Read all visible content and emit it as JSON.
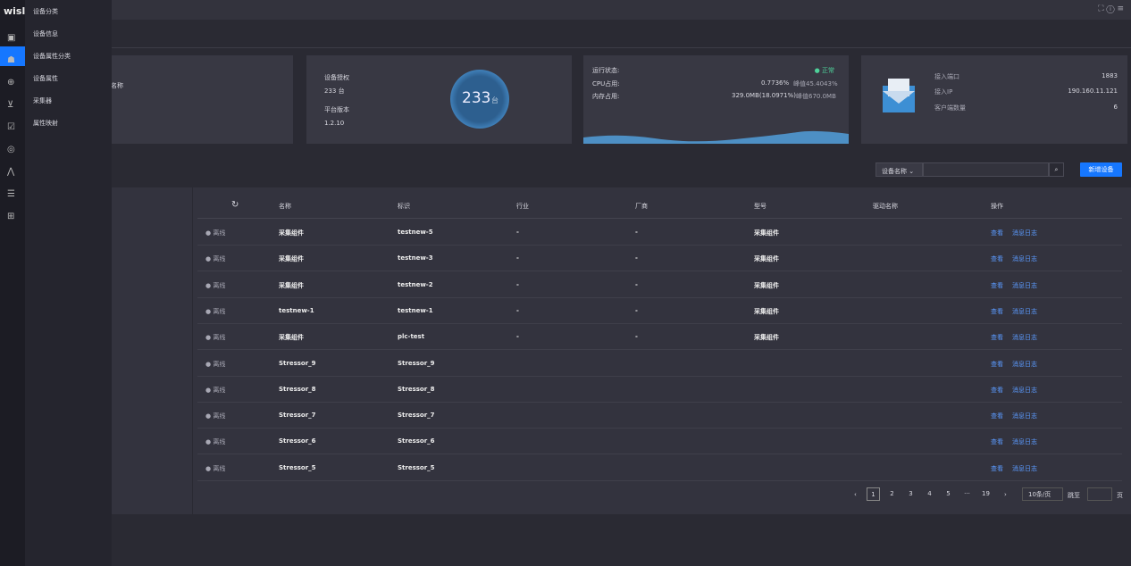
{
  "logo": "wisl",
  "menu": [
    "设备分类",
    "设备信息",
    "设备属性分类",
    "设备属性",
    "采集器",
    "属性映射"
  ],
  "cards": {
    "name_label": "名称",
    "license": {
      "label": "设备授权",
      "value": "233 台",
      "version_label": "平台版本",
      "version": "1.2.10",
      "ring_value": "233",
      "ring_unit": "台"
    },
    "status": {
      "label": "运行状态:",
      "state": "正常",
      "cpu_label": "CPU占用:",
      "cpu": "0.7736%",
      "cpu_peak": "峰值45.4043%",
      "mem_label": "内存占用:",
      "mem": "329.0MB(18.0971%)",
      "mem_peak": "峰值670.0MB"
    },
    "access": {
      "port_label": "接入端口",
      "port": "1883",
      "ip_label": "接入IP",
      "ip": "190.160.11.121",
      "clients_label": "客户端数量",
      "clients": "6"
    }
  },
  "search": {
    "field": "设备名称",
    "add_button": "新增设备"
  },
  "table": {
    "headers": [
      "名称",
      "标识",
      "行业",
      "厂商",
      "型号",
      "驱动名称",
      "操作"
    ],
    "actions": [
      "查看",
      "消息日志"
    ],
    "rows": [
      [
        "离线",
        "采集组件",
        "testnew-5",
        "-",
        "-",
        "采集组件",
        null
      ],
      [
        "离线",
        "采集组件",
        "testnew-3",
        "-",
        "-",
        "采集组件",
        null
      ],
      [
        "离线",
        "采集组件",
        "testnew-2",
        "-",
        "-",
        "采集组件",
        null
      ],
      [
        "离线",
        "testnew-1",
        "testnew-1",
        "-",
        "-",
        "采集组件",
        null
      ],
      [
        "离线",
        "采集组件",
        "plc-test",
        "-",
        "-",
        "采集组件",
        null
      ],
      [
        "离线",
        "Stressor_9",
        "Stressor_9",
        null,
        null,
        null,
        null
      ],
      [
        "离线",
        "Stressor_8",
        "Stressor_8",
        null,
        null,
        null,
        null
      ],
      [
        "离线",
        "Stressor_7",
        "Stressor_7",
        null,
        null,
        null,
        null
      ],
      [
        "离线",
        "Stressor_6",
        "Stressor_6",
        null,
        null,
        null,
        null
      ],
      [
        "离线",
        "Stressor_5",
        "Stressor_5",
        null,
        null,
        null,
        null
      ]
    ]
  },
  "pagination": {
    "pages": [
      "1",
      "2",
      "3",
      "4",
      "5",
      "···",
      "19"
    ],
    "page_size": "10条/页",
    "goto": "跳至",
    "page_unit": "页"
  }
}
